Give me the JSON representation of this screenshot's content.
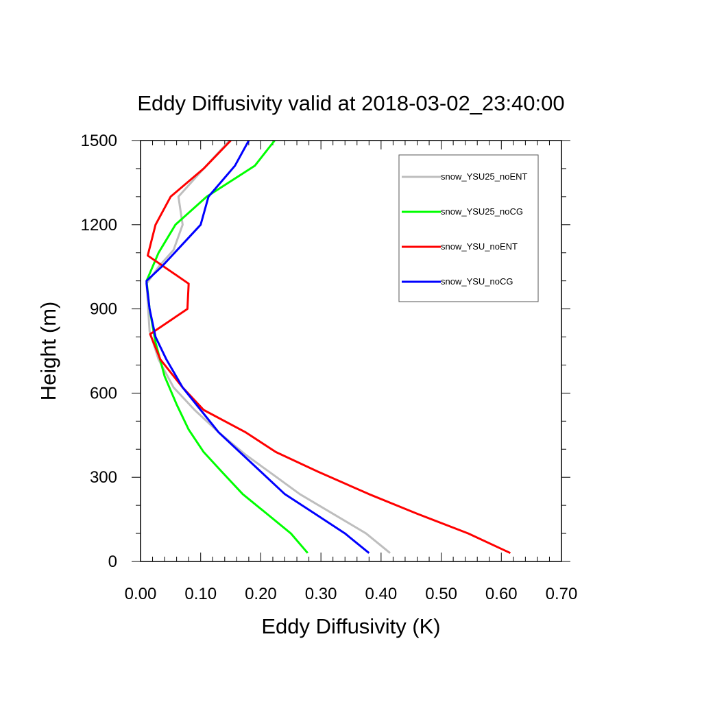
{
  "chart_data": {
    "type": "line",
    "title": "Eddy Diffusivity valid at 2018-03-02_23:40:00",
    "xlabel": "Eddy Diffusivity (K)",
    "ylabel": "Height (m)",
    "xlim": [
      0,
      0.7
    ],
    "ylim": [
      0,
      1500
    ],
    "x_ticks": [
      "0.00",
      "0.10",
      "0.20",
      "0.30",
      "0.40",
      "0.50",
      "0.60",
      "0.70"
    ],
    "y_ticks": [
      "0",
      "300",
      "600",
      "900",
      "1200",
      "1500"
    ],
    "grid": false,
    "legend_position": "top-right",
    "series": [
      {
        "name": "snow_YSU25_noENT",
        "color": "#bebebe",
        "x": [
          0.415,
          0.375,
          0.32,
          0.265,
          0.22,
          0.175,
          0.13,
          0.09,
          0.055,
          0.03,
          0.015,
          0.01,
          0.03,
          0.055,
          0.07,
          0.063,
          0.105,
          0.148
        ],
        "y": [
          30,
          100,
          170,
          240,
          310,
          380,
          460,
          540,
          620,
          720,
          820,
          990,
          1050,
          1110,
          1200,
          1300,
          1400,
          1500
        ]
      },
      {
        "name": "snow_YSU25_noCG",
        "color": "#00ff00",
        "x": [
          0.278,
          0.25,
          0.21,
          0.17,
          0.135,
          0.105,
          0.08,
          0.06,
          0.04,
          0.025,
          0.015,
          0.01,
          0.03,
          0.058,
          0.11,
          0.19,
          0.223
        ],
        "y": [
          30,
          100,
          170,
          240,
          320,
          390,
          470,
          560,
          660,
          780,
          900,
          1000,
          1100,
          1200,
          1300,
          1410,
          1500
        ]
      },
      {
        "name": "snow_YSU_noENT",
        "color": "#ff0000",
        "x": [
          0.615,
          0.545,
          0.46,
          0.38,
          0.295,
          0.225,
          0.175,
          0.105,
          0.07,
          0.033,
          0.016,
          0.078,
          0.08,
          0.012,
          0.025,
          0.05,
          0.105,
          0.15
        ],
        "y": [
          30,
          100,
          170,
          240,
          320,
          390,
          460,
          540,
          620,
          720,
          810,
          900,
          990,
          1090,
          1200,
          1300,
          1400,
          1500
        ]
      },
      {
        "name": "snow_YSU_noCG",
        "color": "#0000ff",
        "x": [
          0.38,
          0.34,
          0.29,
          0.24,
          0.2,
          0.165,
          0.13,
          0.1,
          0.07,
          0.043,
          0.025,
          0.015,
          0.01,
          0.01,
          0.035,
          0.1,
          0.113,
          0.157,
          0.18
        ],
        "y": [
          30,
          100,
          170,
          240,
          320,
          390,
          460,
          540,
          620,
          720,
          800,
          900,
          990,
          1000,
          1050,
          1200,
          1300,
          1410,
          1500
        ]
      }
    ]
  }
}
